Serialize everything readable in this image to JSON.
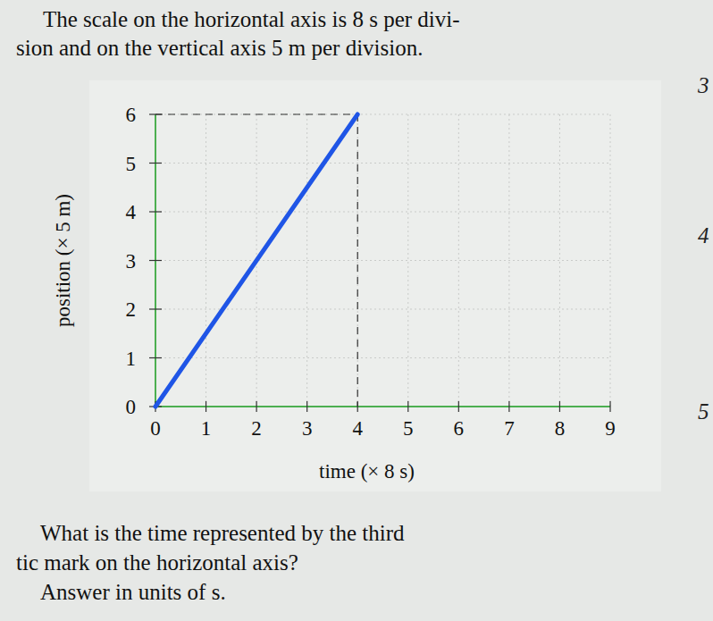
{
  "chart_data": {
    "type": "line",
    "x_label": "time (× 8 s)",
    "y_label": "position (× 5 m)",
    "x": [
      0,
      4
    ],
    "series": [
      {
        "color": "#1f55e6",
        "values": [
          0,
          6
        ]
      }
    ],
    "xlim": [
      0,
      9
    ],
    "ylim": [
      0,
      6
    ],
    "xticks": [
      0,
      1,
      2,
      3,
      4,
      5,
      6,
      7,
      8,
      9
    ],
    "yticks": [
      0,
      1,
      2,
      3,
      4,
      5,
      6
    ],
    "grid": true
  },
  "page": {
    "intro": [
      "The scale on the horizontal axis is 8 s per divi-",
      "sion and on the vertical axis 5 m per division."
    ],
    "question": [
      "What is the time represented by the third",
      "tic mark on the horizontal axis?",
      "Answer in units of  s."
    ],
    "margin_numbers": [
      3,
      4,
      5
    ]
  }
}
